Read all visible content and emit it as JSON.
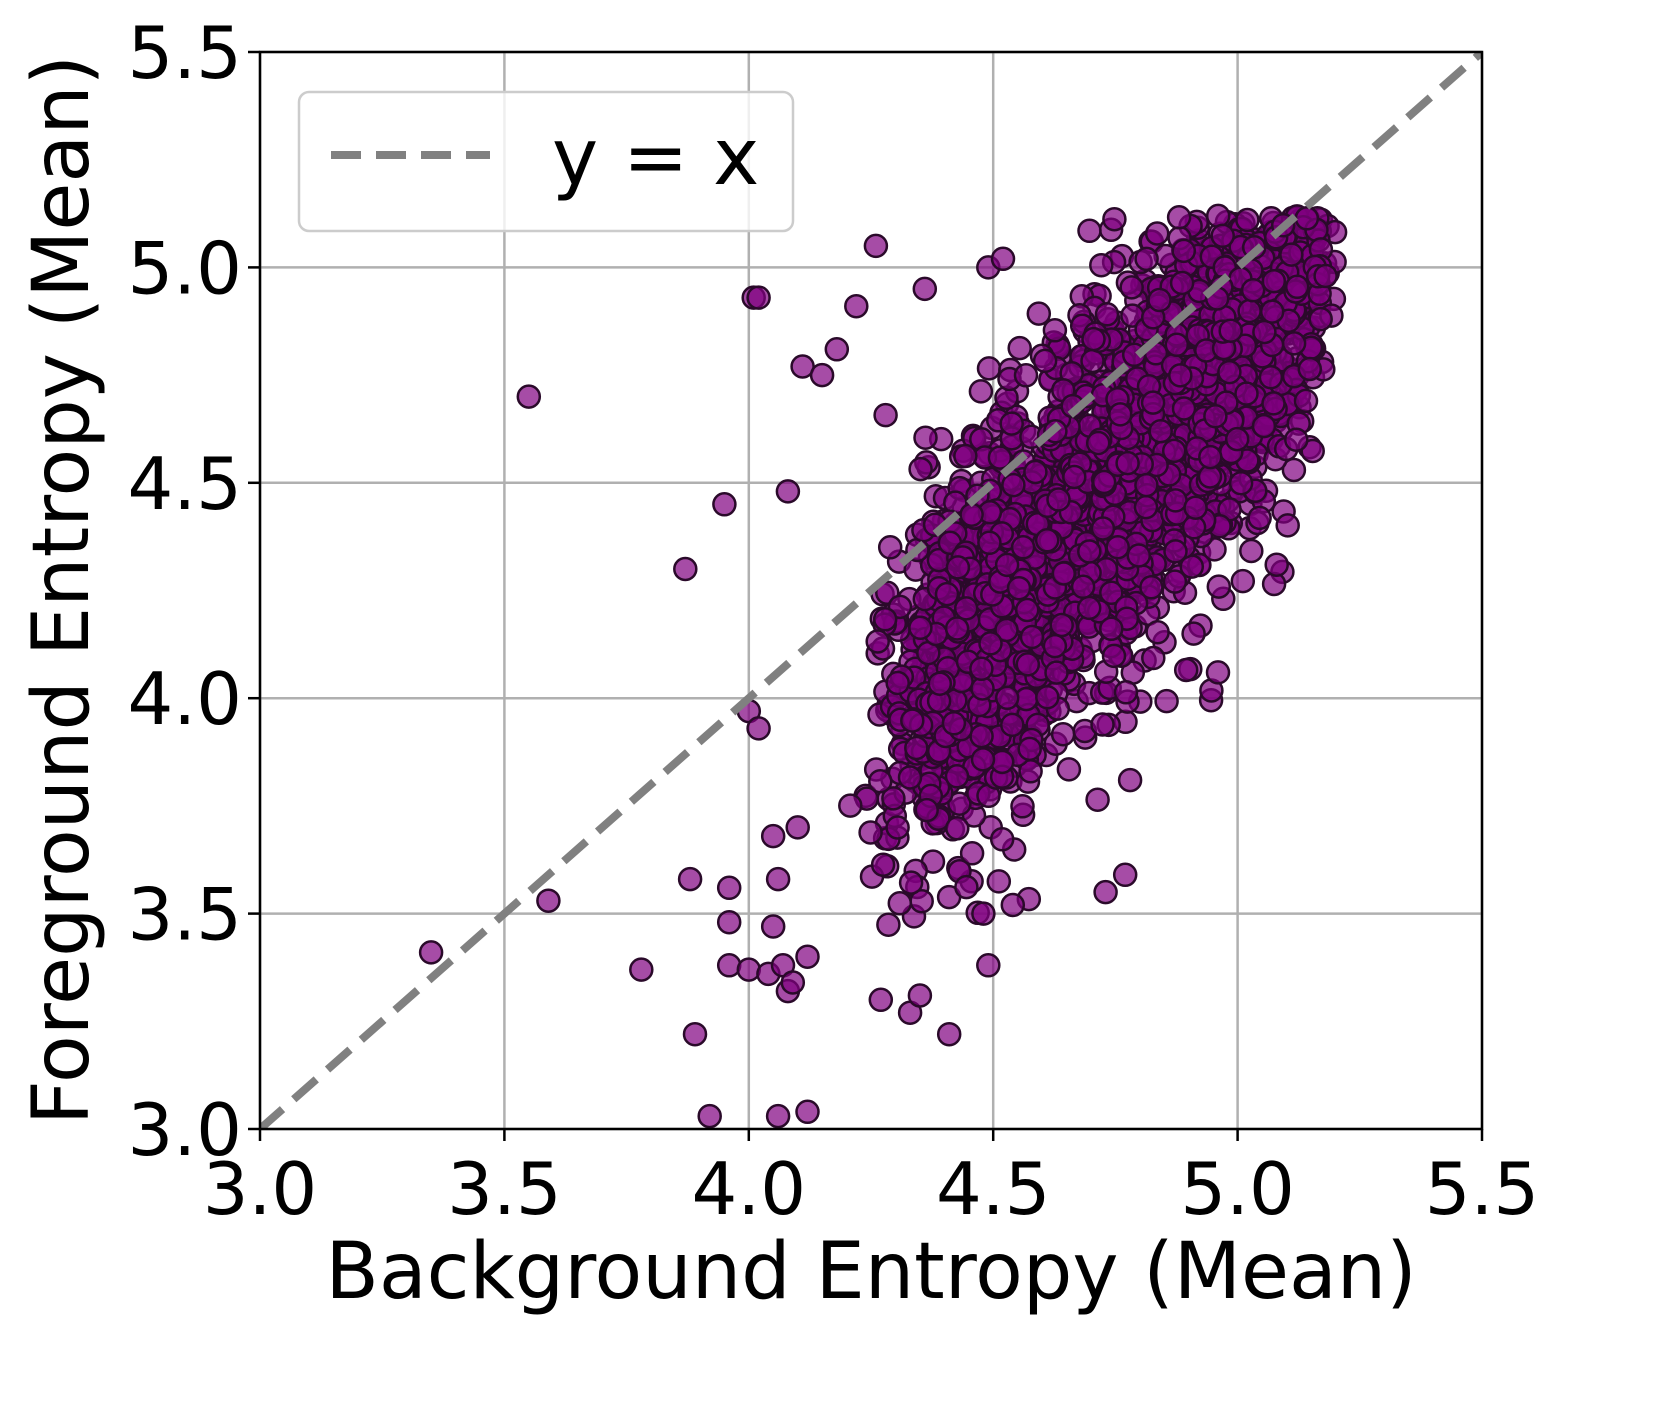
{
  "chart_data": {
    "type": "scatter",
    "title": "",
    "xlabel": "Background Entropy (Mean)",
    "ylabel": "Foreground Entropy (Mean)",
    "xlim": [
      3.0,
      5.5
    ],
    "ylim": [
      3.0,
      5.5
    ],
    "xticks": [
      "3.0",
      "3.5",
      "4.0",
      "4.5",
      "5.0",
      "5.5"
    ],
    "yticks": [
      "3.0",
      "3.5",
      "4.0",
      "4.5",
      "5.0",
      "5.5"
    ],
    "grid": true,
    "legend": {
      "position": "top-left",
      "entries": [
        "y = x"
      ]
    },
    "reference_line": {
      "label": "y = x",
      "color": "#808080",
      "style": "dashed"
    },
    "point_color": "#800080",
    "point_edge_color": "#2a0a2a",
    "outliers": [
      [
        3.35,
        3.41
      ],
      [
        3.55,
        4.7
      ],
      [
        3.59,
        3.53
      ],
      [
        3.78,
        3.37
      ],
      [
        3.87,
        4.3
      ],
      [
        3.88,
        3.58
      ],
      [
        3.89,
        3.22
      ],
      [
        3.92,
        3.03
      ],
      [
        3.95,
        4.45
      ],
      [
        3.96,
        3.56
      ],
      [
        3.96,
        3.38
      ],
      [
        3.96,
        3.48
      ],
      [
        4.0,
        3.37
      ],
      [
        4.0,
        3.97
      ],
      [
        4.01,
        4.93
      ],
      [
        4.02,
        4.93
      ],
      [
        4.02,
        3.93
      ],
      [
        4.04,
        3.36
      ],
      [
        4.05,
        3.68
      ],
      [
        4.05,
        3.47
      ],
      [
        4.06,
        3.58
      ],
      [
        4.06,
        3.03
      ],
      [
        4.07,
        3.38
      ],
      [
        4.08,
        3.32
      ],
      [
        4.08,
        4.48
      ],
      [
        4.09,
        3.34
      ],
      [
        4.1,
        3.7
      ],
      [
        4.11,
        4.77
      ],
      [
        4.12,
        3.04
      ],
      [
        4.12,
        3.4
      ],
      [
        4.15,
        4.75
      ],
      [
        4.26,
        5.05
      ],
      [
        4.49,
        5.0
      ],
      [
        4.52,
        5.02
      ],
      [
        4.36,
        4.95
      ],
      [
        4.22,
        4.91
      ],
      [
        4.18,
        4.81
      ],
      [
        4.73,
        3.55
      ],
      [
        4.77,
        3.59
      ],
      [
        4.49,
        3.38
      ],
      [
        4.41,
        3.22
      ],
      [
        4.33,
        3.27
      ],
      [
        4.27,
        3.3
      ],
      [
        4.35,
        3.31
      ],
      [
        5.08,
        4.31
      ],
      [
        5.12,
        4.6
      ],
      [
        5.14,
        4.69
      ],
      [
        5.17,
        4.88
      ],
      [
        5.18,
        4.98
      ],
      [
        5.02,
        5.11
      ],
      [
        4.96,
        4.06
      ],
      [
        4.91,
        4.15
      ],
      [
        4.78,
        3.81
      ],
      [
        4.48,
        3.5
      ],
      [
        4.54,
        3.52
      ]
    ],
    "clusters": [
      {
        "x": [
          4.15,
          5.2
        ],
        "y": [
          3.45,
          5.1
        ],
        "trend": "positive",
        "count": 3000
      }
    ]
  }
}
